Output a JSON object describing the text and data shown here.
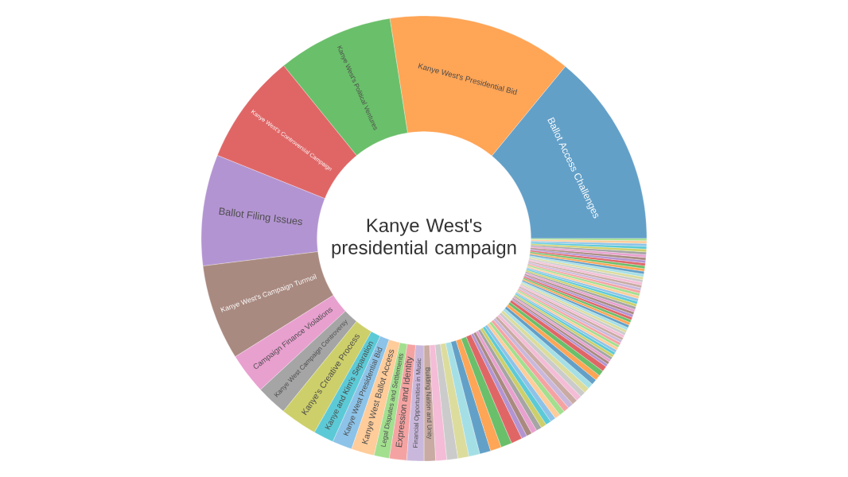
{
  "chart_data": {
    "type": "donut",
    "title": "Kanye West's presidential campaign",
    "categories": [
      "Ballot Access Challenges",
      "Kanye West's Presidential Bid",
      "Kanye West's Political Ventures",
      "Kanye West's Controversial Campaign",
      "Ballot Filing Issues",
      "Kanye West's Campaign Turmoil",
      "Campaign Finance Violations",
      "Kanye West Campaign Controversy",
      "Kanye's Creative Process",
      "Kanye and Kim's Separation",
      "Kanye West Presidential Bid",
      "Kanye West Ballot Access",
      "Legal Disputes and Settlements",
      "Expression and Identity",
      "Financial Opportunities in Music",
      "Building Nation and Unity",
      null,
      null,
      null,
      null,
      null,
      null,
      null,
      null,
      null,
      null,
      null,
      null,
      null,
      null,
      null,
      null,
      null,
      null,
      null,
      null,
      null,
      null,
      null,
      null,
      null,
      null,
      null,
      null,
      null,
      null,
      null,
      null,
      null,
      null,
      null,
      null,
      null,
      null,
      null,
      null,
      null,
      null,
      null,
      null,
      null,
      null,
      null,
      null,
      null,
      null,
      null,
      null,
      null,
      null,
      null,
      null,
      null,
      null,
      null,
      null,
      null,
      null,
      null,
      null,
      null,
      null,
      null,
      null,
      null,
      null,
      null,
      null,
      null,
      null,
      null,
      null,
      null
    ],
    "values": [
      14.06,
      13.39,
      8.4,
      8.06,
      8.06,
      6.94,
      2.97,
      2.25,
      2.69,
      1.47,
      1.44,
      1.67,
      1.11,
      1.25,
      1.25,
      0.83,
      0.8,
      0.8,
      0.8,
      0.8,
      0.8,
      0.8,
      0.8,
      0.8,
      0.4,
      0.4,
      0.4,
      0.4,
      0.4,
      0.4,
      0.4,
      0.4,
      0.4,
      0.4,
      0.4,
      0.4,
      0.4,
      0.4,
      0.4,
      0.4,
      0.4,
      0.4,
      0.4,
      0.4,
      0.2,
      0.2,
      0.2,
      0.2,
      0.2,
      0.2,
      0.2,
      0.2,
      0.2,
      0.2,
      0.2,
      0.2,
      0.2,
      0.2,
      0.2,
      0.2,
      0.2,
      0.2,
      0.2,
      0.2,
      0.2,
      0.2,
      0.2,
      0.2,
      0.2,
      0.2,
      0.2,
      0.2,
      0.2,
      0.2,
      0.2,
      0.2,
      0.2,
      0.2,
      0.2,
      0.2,
      0.2,
      0.2,
      0.2,
      0.2,
      0.2,
      0.2,
      0.2,
      0.2,
      0.2,
      0.2,
      0.2,
      0.2,
      0.16
    ],
    "colors": [
      "#63a0c8",
      "#ffa556",
      "#6abf6a",
      "#e06666",
      "#b394d2",
      "#a98a80",
      "#e8a0cf",
      "#a5a5a5",
      "#cdcf6a",
      "#5ccad6",
      "#8dc3e8",
      "#ffcc9a",
      "#a2df8f",
      "#f5a3a2",
      "#cab8dc",
      "#c9aba3",
      "#f4bcd6",
      "#cbcbcb",
      "#dcdc9d",
      "#a5dfe6",
      "#63a0c8",
      "#ffa556",
      "#6abf6a",
      "#e06666",
      "#b394d2",
      "#a98a80",
      "#e8a0cf",
      "#a5a5a5",
      "#cdcf6a",
      "#5ccad6",
      "#8dc3e8",
      "#ffcc9a",
      "#a2df8f",
      "#f5a3a2",
      "#cab8dc",
      "#c9aba3",
      "#f4bcd6",
      "#cbcbcb",
      "#dcdc9d",
      "#a5dfe6",
      "#63a0c8",
      "#ffa556",
      "#6abf6a",
      "#e06666",
      "#b394d2",
      "#a98a80",
      "#e8a0cf",
      "#a5a5a5",
      "#cdcf6a",
      "#5ccad6",
      "#8dc3e8",
      "#ffcc9a",
      "#a2df8f",
      "#f5a3a2",
      "#cab8dc",
      "#c9aba3",
      "#f4bcd6",
      "#cbcbcb",
      "#dcdc9d",
      "#a5dfe6",
      "#63a0c8",
      "#ffa556",
      "#6abf6a",
      "#e06666",
      "#b394d2",
      "#a98a80",
      "#e8a0cf",
      "#a5a5a5",
      "#cdcf6a",
      "#5ccad6",
      "#8dc3e8",
      "#ffcc9a",
      "#a2df8f",
      "#f5a3a2",
      "#cab8dc",
      "#c9aba3",
      "#f4bcd6",
      "#cbcbcb",
      "#dcdc9d",
      "#a5dfe6",
      "#63a0c8",
      "#ffa556",
      "#6abf6a",
      "#e06666",
      "#b394d2",
      "#a98a80",
      "#e8a0cf",
      "#a5a5a5",
      "#cdcf6a",
      "#5ccad6",
      "#8dc3e8",
      "#ffcc9a",
      "#a2df8f"
    ]
  }
}
